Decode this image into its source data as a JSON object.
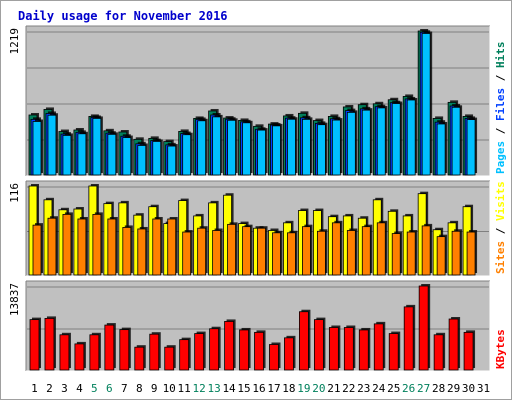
{
  "title": "Daily usage for November 2016",
  "colors": {
    "background": "#c0c0c0",
    "hits": "#00805c",
    "files": "#0040ff",
    "pages": "#00c0ff",
    "visits": "#ffff00",
    "sites": "#ff8000",
    "kbytes": "#ff0000",
    "weekend_day": "#00805c",
    "weekday": "#000000",
    "grid": "#808080"
  },
  "chart_data": [
    {
      "type": "bar",
      "name": "hits-files-pages",
      "max_label": "1219",
      "ylim": [
        0,
        1219
      ],
      "categories": [
        "1",
        "2",
        "3",
        "4",
        "5",
        "6",
        "7",
        "8",
        "9",
        "10",
        "11",
        "12",
        "13",
        "14",
        "15",
        "16",
        "17",
        "18",
        "19",
        "20",
        "21",
        "22",
        "23",
        "24",
        "25",
        "26",
        "27",
        "28",
        "29",
        "30",
        "31"
      ],
      "series": [
        {
          "name": "Hits",
          "values": [
            508,
            555,
            368,
            381,
            496,
            374,
            364,
            302,
            310,
            283,
            369,
            479,
            542,
            482,
            462,
            412,
            431,
            500,
            522,
            461,
            496,
            576,
            595,
            603,
            637,
            665,
            1219,
            479,
            615,
            496,
            0
          ]
        },
        {
          "name": "Files",
          "values": [
            471,
            521,
            346,
            361,
            487,
            354,
            328,
            264,
            291,
            255,
            351,
            470,
            508,
            472,
            450,
            387,
            423,
            481,
            484,
            437,
            476,
            545,
            560,
            578,
            612,
            644,
            1208,
            447,
            584,
            479,
            0
          ]
        },
        {
          "name": "Pages",
          "values": [
            453,
            506,
            335,
            349,
            479,
            344,
            317,
            250,
            284,
            245,
            341,
            459,
            492,
            463,
            442,
            380,
            416,
            472,
            471,
            426,
            465,
            530,
            549,
            568,
            605,
            635,
            1198,
            432,
            573,
            469,
            0
          ]
        }
      ]
    },
    {
      "type": "bar",
      "name": "visits-sites",
      "max_label": "116",
      "ylim": [
        0,
        116
      ],
      "categories": [
        "1",
        "2",
        "3",
        "4",
        "5",
        "6",
        "7",
        "8",
        "9",
        "10",
        "11",
        "12",
        "13",
        "14",
        "15",
        "16",
        "17",
        "18",
        "19",
        "20",
        "21",
        "22",
        "23",
        "24",
        "25",
        "26",
        "27",
        "28",
        "29",
        "30",
        "31"
      ],
      "series": [
        {
          "name": "Visits",
          "values": [
            116,
            98,
            85,
            86,
            116,
            93,
            94,
            78,
            89,
            67,
            97,
            77,
            94,
            104,
            67,
            61,
            58,
            68,
            84,
            84,
            76,
            77,
            74,
            98,
            83,
            77,
            106,
            59,
            68,
            89,
            0
          ]
        },
        {
          "name": "Sites",
          "values": [
            65,
            74,
            79,
            73,
            79,
            73,
            62,
            60,
            73,
            73,
            56,
            61,
            58,
            66,
            63,
            61,
            55,
            55,
            63,
            57,
            68,
            58,
            63,
            68,
            54,
            56,
            64,
            50,
            57,
            56,
            0
          ]
        }
      ]
    },
    {
      "type": "bar",
      "name": "kbytes",
      "max_label": "13837",
      "ylim": [
        0,
        13837
      ],
      "categories": [
        "1",
        "2",
        "3",
        "4",
        "5",
        "6",
        "7",
        "8",
        "9",
        "10",
        "11",
        "12",
        "13",
        "14",
        "15",
        "16",
        "17",
        "18",
        "19",
        "20",
        "21",
        "22",
        "23",
        "24",
        "25",
        "26",
        "27",
        "28",
        "29",
        "30",
        "31"
      ],
      "series": [
        {
          "name": "KBytes",
          "values": [
            8300,
            8500,
            5800,
            4300,
            5800,
            7400,
            6650,
            3760,
            5900,
            3760,
            5000,
            6000,
            6800,
            8000,
            6600,
            6200,
            4200,
            5300,
            9600,
            8300,
            7000,
            7000,
            6600,
            7600,
            6000,
            10400,
            13837,
            5800,
            8400,
            6200,
            0
          ]
        }
      ]
    }
  ],
  "legend_panel1": {
    "pages": "Pages",
    "files": "Files",
    "hits": "Hits",
    "sep": " / "
  },
  "legend_panel2": {
    "sites": "Sites",
    "visits": "Visits",
    "sep": " / "
  },
  "legend_panel3": {
    "kbytes": "KBytes"
  },
  "weekend_days": [
    "5",
    "6",
    "12",
    "13",
    "19",
    "20",
    "26",
    "27"
  ]
}
